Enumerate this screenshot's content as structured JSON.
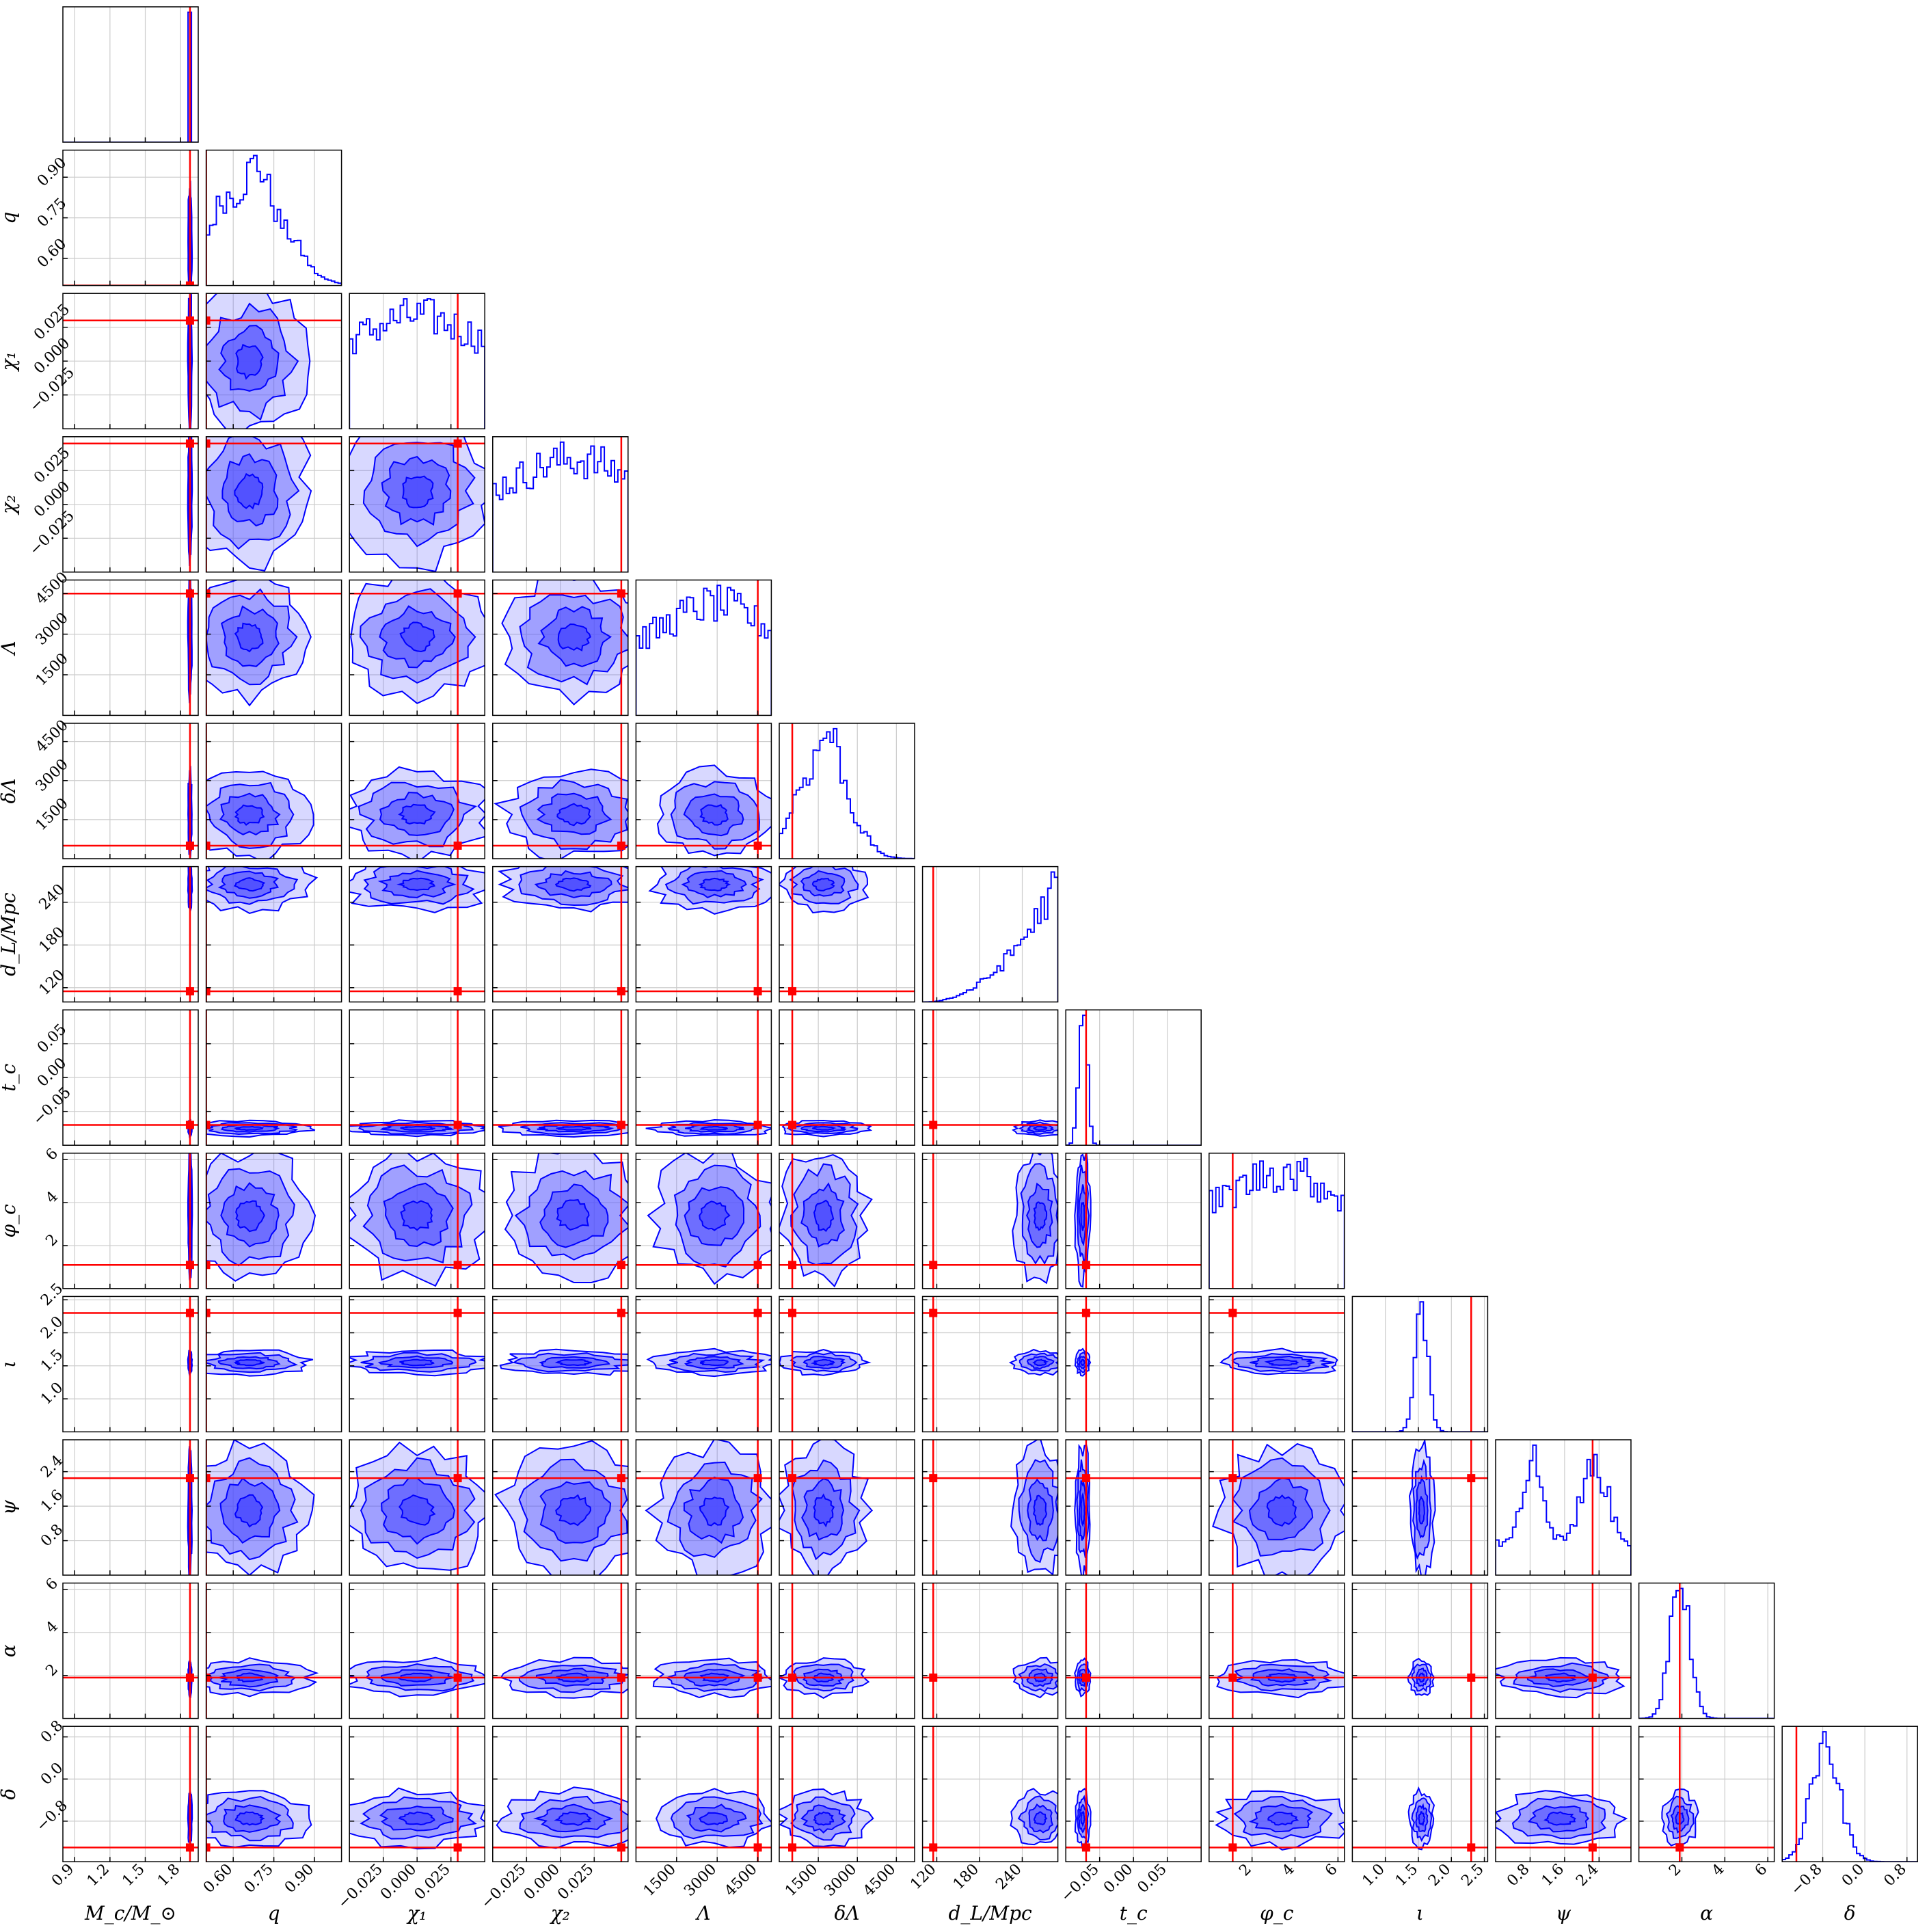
{
  "chart_data": {
    "type": "corner",
    "title": "",
    "parameters": [
      {
        "key": "Mc",
        "label": "M_c/M_⊙",
        "range": [
          0.8,
          1.95
        ],
        "ticks": [
          0.9,
          1.2,
          1.5,
          1.8
        ],
        "tick_labels": [
          "0.9",
          "1.2",
          "1.5",
          "1.8"
        ],
        "truth": 1.88
      },
      {
        "key": "q",
        "label": "q",
        "range": [
          0.5,
          1.0
        ],
        "ticks": [
          0.6,
          0.75,
          0.9
        ],
        "tick_labels": [
          "0.60",
          "0.75",
          "0.90"
        ],
        "truth": 0.5
      },
      {
        "key": "chi1",
        "label": "χ₁",
        "range": [
          -0.05,
          0.05
        ],
        "ticks": [
          -0.025,
          0.0,
          0.025
        ],
        "tick_labels": [
          "−0.025",
          "0.000",
          "0.025"
        ],
        "truth": 0.03
      },
      {
        "key": "chi2",
        "label": "χ₂",
        "range": [
          -0.05,
          0.05
        ],
        "ticks": [
          -0.025,
          0.0,
          0.025
        ],
        "tick_labels": [
          "−0.025",
          "0.000",
          "0.025"
        ],
        "truth": 0.045
      },
      {
        "key": "Lambda",
        "label": "Λ",
        "range": [
          0,
          5000
        ],
        "ticks": [
          1500,
          3000,
          4500
        ],
        "tick_labels": [
          "1500",
          "3000",
          "4500"
        ],
        "truth": 4500
      },
      {
        "key": "dLambda",
        "label": "δΛ",
        "range": [
          0,
          5200
        ],
        "ticks": [
          1500,
          3000,
          4500
        ],
        "tick_labels": [
          "1500",
          "3000",
          "4500"
        ],
        "truth": 500
      },
      {
        "key": "dL",
        "label": "d_L/Mpc",
        "range": [
          100,
          290
        ],
        "ticks": [
          120,
          180,
          240
        ],
        "tick_labels": [
          "120",
          "180",
          "240"
        ],
        "truth": 115
      },
      {
        "key": "tc",
        "label": "t_c",
        "range": [
          -0.1,
          0.1
        ],
        "ticks": [
          -0.05,
          0.0,
          0.05
        ],
        "tick_labels": [
          "−0.05",
          "0.00",
          "0.05"
        ],
        "truth": -0.07
      },
      {
        "key": "phic",
        "label": "φ_c",
        "range": [
          0,
          6.3
        ],
        "ticks": [
          2,
          4,
          6
        ],
        "tick_labels": [
          "2",
          "4",
          "6"
        ],
        "truth": 1.1
      },
      {
        "key": "iota",
        "label": "ι",
        "range": [
          0.5,
          2.55
        ],
        "ticks": [
          1.0,
          1.5,
          2.0,
          2.5
        ],
        "tick_labels": [
          "1.0",
          "1.5",
          "2.0",
          "2.5"
        ],
        "truth": 2.3
      },
      {
        "key": "psi",
        "label": "ψ",
        "range": [
          0,
          3.14
        ],
        "ticks": [
          0.8,
          1.6,
          2.4
        ],
        "tick_labels": [
          "0.8",
          "1.6",
          "2.4"
        ],
        "truth": 2.25
      },
      {
        "key": "alpha",
        "label": "α",
        "range": [
          0,
          6.3
        ],
        "ticks": [
          2,
          4,
          6
        ],
        "tick_labels": [
          "2",
          "4",
          "6"
        ],
        "truth": 1.9
      },
      {
        "key": "delta",
        "label": "δ",
        "range": [
          -1.57,
          1.0
        ],
        "ticks": [
          -0.8,
          0.0,
          0.8
        ],
        "tick_labels": [
          "−0.8",
          "0.0",
          "0.8"
        ],
        "truth": -1.3
      }
    ],
    "posterior": [
      {
        "mean": 1.88,
        "sd": 0.005,
        "shape": "gauss"
      },
      {
        "mean": 0.66,
        "sd": 0.12,
        "shape": "skew"
      },
      {
        "mean": 0.0,
        "sd": 0.03,
        "shape": "flat"
      },
      {
        "mean": 0.01,
        "sd": 0.03,
        "shape": "flat"
      },
      {
        "mean": 2900,
        "sd": 1200,
        "shape": "flat"
      },
      {
        "mean": 1700,
        "sd": 900,
        "shape": "skew"
      },
      {
        "mean": 265,
        "sd": 20,
        "shape": "edge"
      },
      {
        "mean": -0.075,
        "sd": 0.006,
        "shape": "gauss"
      },
      {
        "mean": 3.4,
        "sd": 1.6,
        "shape": "flat"
      },
      {
        "mean": 1.55,
        "sd": 0.1,
        "shape": "gauss"
      },
      {
        "mean": 1.5,
        "sd": 0.8,
        "shape": "bimodal"
      },
      {
        "mean": 1.9,
        "sd": 0.45,
        "shape": "gauss"
      },
      {
        "mean": -0.75,
        "sd": 0.28,
        "shape": "gauss"
      }
    ],
    "colors": {
      "posterior": "#0000ff",
      "posterior_fill": "#4d4dff",
      "truth": "#ff0000",
      "grid": "#cccccc",
      "frame": "#000000"
    },
    "grid": true,
    "legend": "none"
  }
}
